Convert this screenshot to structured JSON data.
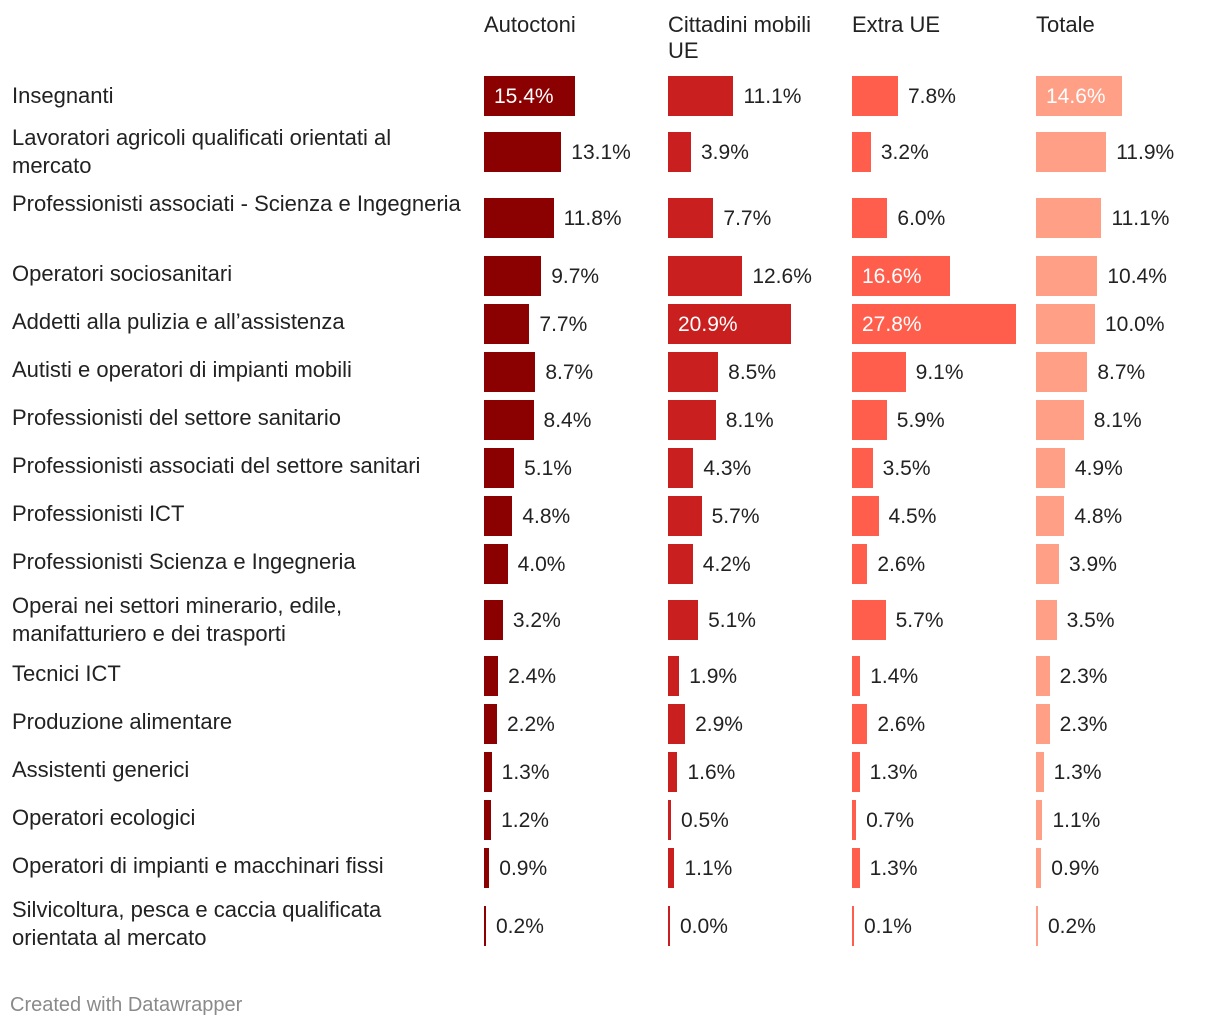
{
  "chart_data": {
    "type": "table",
    "series": [
      {
        "name": "Autoctoni",
        "color": "#8b0000"
      },
      {
        "name": "Cittadini mobili UE",
        "color": "#c91f1f"
      },
      {
        "name": "Extra UE",
        "color": "#ff5e4d"
      },
      {
        "name": "Totale",
        "color": "#ff9f86"
      }
    ],
    "rows": [
      {
        "label": "Insegnanti",
        "values": [
          15.4,
          11.1,
          7.8,
          14.6
        ],
        "display": [
          "15.4%",
          "11.1%",
          "7.8%",
          "14.6%"
        ]
      },
      {
        "label": "Lavoratori agricoli qualificati orientati al mercato",
        "values": [
          13.1,
          3.9,
          3.2,
          11.9
        ],
        "display": [
          "13.1%",
          "3.9%",
          "3.2%",
          "11.9%"
        ]
      },
      {
        "label": "Professionisti associati - Scienza e Ingegneria",
        "values": [
          11.8,
          7.7,
          6.0,
          11.1
        ],
        "display": [
          "11.8%",
          "7.7%",
          "6.0%",
          "11.1%"
        ]
      },
      {
        "label": "Operatori sociosanitari",
        "values": [
          9.7,
          12.6,
          16.6,
          10.4
        ],
        "display": [
          "9.7%",
          "12.6%",
          "16.6%",
          "10.4%"
        ]
      },
      {
        "label": "Addetti alla pulizia e all’assistenza",
        "values": [
          7.7,
          20.9,
          27.8,
          10.0
        ],
        "display": [
          "7.7%",
          "20.9%",
          "27.8%",
          "10.0%"
        ]
      },
      {
        "label": "Autisti e operatori di impianti mobili",
        "values": [
          8.7,
          8.5,
          9.1,
          8.7
        ],
        "display": [
          "8.7%",
          "8.5%",
          "9.1%",
          "8.7%"
        ]
      },
      {
        "label": "Professionisti del settore sanitario",
        "values": [
          8.4,
          8.1,
          5.9,
          8.1
        ],
        "display": [
          "8.4%",
          "8.1%",
          "5.9%",
          "8.1%"
        ]
      },
      {
        "label": "Professionisti associati del settore sanitari",
        "values": [
          5.1,
          4.3,
          3.5,
          4.9
        ],
        "display": [
          "5.1%",
          "4.3%",
          "3.5%",
          "4.9%"
        ]
      },
      {
        "label": "Professionisti ICT",
        "values": [
          4.8,
          5.7,
          4.5,
          4.8
        ],
        "display": [
          "4.8%",
          "5.7%",
          "4.5%",
          "4.8%"
        ]
      },
      {
        "label": "Professionisti Scienza e Ingegneria",
        "values": [
          4.0,
          4.2,
          2.6,
          3.9
        ],
        "display": [
          "4.0%",
          "4.2%",
          "2.6%",
          "3.9%"
        ]
      },
      {
        "label": "Operai nei settori minerario, edile, manifatturiero e dei trasporti",
        "values": [
          3.2,
          5.1,
          5.7,
          3.5
        ],
        "display": [
          "3.2%",
          "5.1%",
          "5.7%",
          "3.5%"
        ]
      },
      {
        "label": "Tecnici ICT",
        "values": [
          2.4,
          1.9,
          1.4,
          2.3
        ],
        "display": [
          "2.4%",
          "1.9%",
          "1.4%",
          "2.3%"
        ]
      },
      {
        "label": "Produzione alimentare",
        "values": [
          2.2,
          2.9,
          2.6,
          2.3
        ],
        "display": [
          "2.2%",
          "2.9%",
          "2.6%",
          "2.3%"
        ]
      },
      {
        "label": "Assistenti generici",
        "values": [
          1.3,
          1.6,
          1.3,
          1.3
        ],
        "display": [
          "1.3%",
          "1.6%",
          "1.3%",
          "1.3%"
        ]
      },
      {
        "label": "Operatori ecologici",
        "values": [
          1.2,
          0.5,
          0.7,
          1.1
        ],
        "display": [
          "1.2%",
          "0.5%",
          "0.7%",
          "1.1%"
        ]
      },
      {
        "label": "Operatori di impianti e macchinari fissi",
        "values": [
          0.9,
          1.1,
          1.3,
          0.9
        ],
        "display": [
          "0.9%",
          "1.1%",
          "1.3%",
          "0.9%"
        ]
      },
      {
        "label": "Silvicoltura, pesca e caccia qualificata orientata al mercato",
        "values": [
          0.2,
          0.0,
          0.1,
          0.2
        ],
        "display": [
          "0.2%",
          "0.0%",
          "0.1%",
          "0.2%"
        ]
      }
    ]
  },
  "footer": "Created with Datawrapper"
}
